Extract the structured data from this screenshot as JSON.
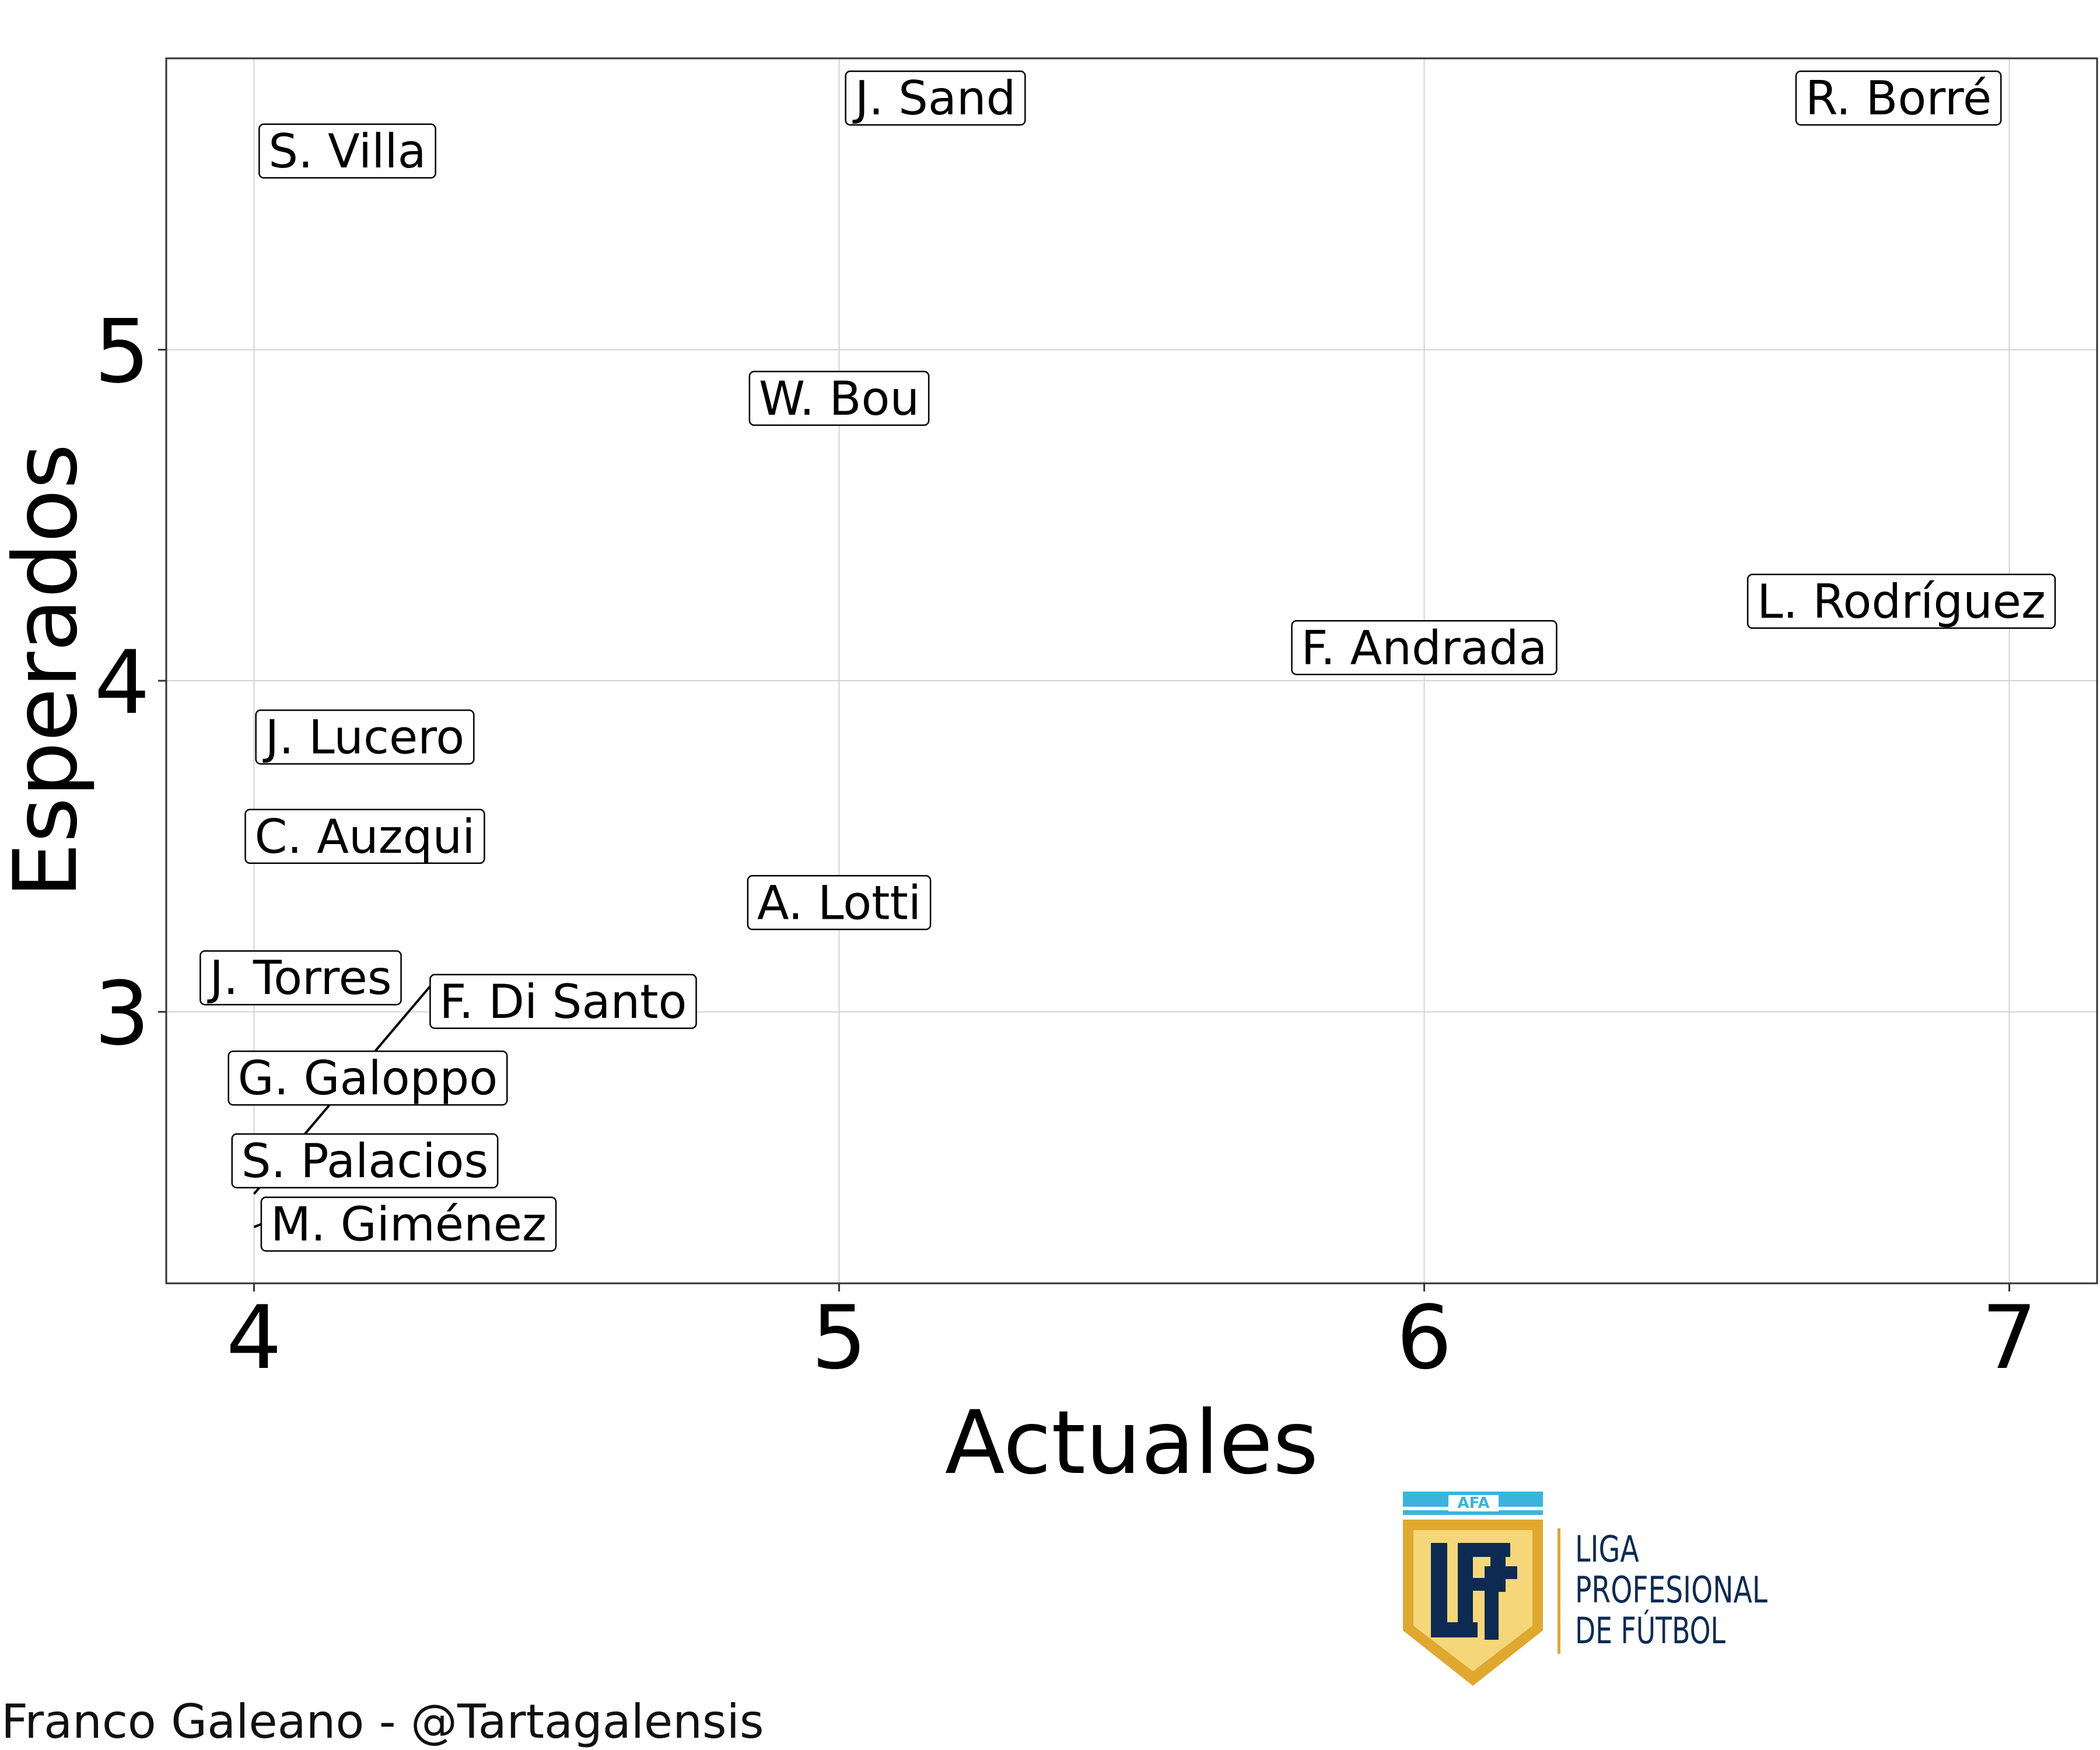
{
  "chart_data": {
    "type": "scatter",
    "title": "",
    "xlabel": "Actuales",
    "ylabel": "Esperados",
    "xlim": [
      3.85,
      7.15
    ],
    "ylim": [
      2.18,
      5.88
    ],
    "xticks": [
      4,
      5,
      6,
      7
    ],
    "yticks": [
      3,
      4,
      5
    ],
    "grid": true,
    "legend": "none",
    "points": [
      {
        "label": "J. Sand",
        "x": 5,
        "y": 5.76
      },
      {
        "label": "R. Borré",
        "x": 7,
        "y": 5.76
      },
      {
        "label": "S. Villa",
        "x": 4,
        "y": 5.6
      },
      {
        "label": "W. Bou",
        "x": 5,
        "y": 4.92
      },
      {
        "label": "L. Rodríguez",
        "x": 7,
        "y": 4.24
      },
      {
        "label": "F. Andrada",
        "x": 6,
        "y": 4.1
      },
      {
        "label": "J. Lucero",
        "x": 4,
        "y": 3.83
      },
      {
        "label": "C. Auzqui",
        "x": 4,
        "y": 3.53
      },
      {
        "label": "A. Lotti",
        "x": 5,
        "y": 3.33
      },
      {
        "label": "J. Torres",
        "x": 4,
        "y": 3.05
      },
      {
        "label": "F. Di Santo",
        "x": 4,
        "y": 2.45
      },
      {
        "label": "G. Galoppo",
        "x": 4,
        "y": 2.8
      },
      {
        "label": "S. Palacios",
        "x": 4,
        "y": 2.55
      },
      {
        "label": "M. Giménez",
        "x": 4,
        "y": 2.35
      }
    ]
  },
  "credit": "Franco Galeano - @Tartagalensis",
  "logo": {
    "afa_text": "AFA",
    "monogram": "LPF",
    "lines": [
      "LIGA",
      "PROFESIONAL",
      "DE FÚTBOL"
    ],
    "colors": {
      "sky": "#39b4dd",
      "gold": "#e0a82e",
      "navy": "#0d2b52",
      "cream": "#f5d77a"
    }
  },
  "colors": {
    "grid": "#d3d3d3",
    "text": "#000000",
    "label_border": "#000000"
  }
}
